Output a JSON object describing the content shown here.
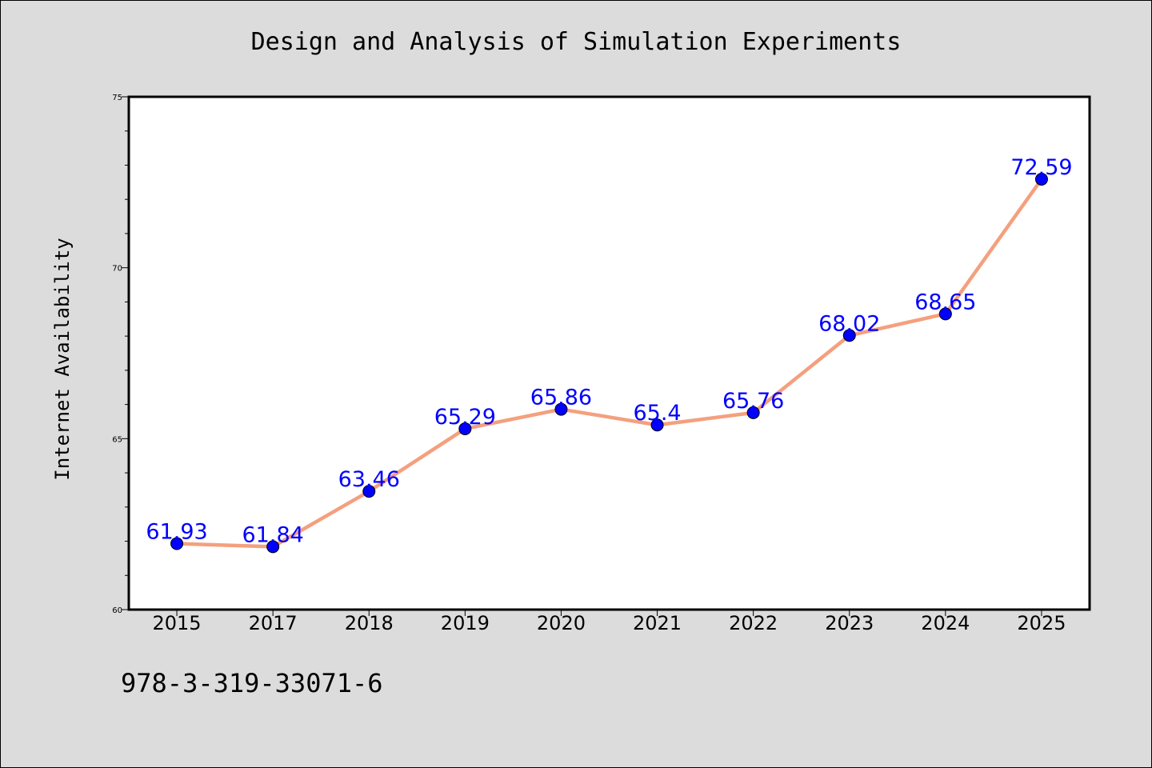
{
  "chart_data": {
    "type": "line",
    "title": "Design and Analysis of Simulation Experiments",
    "xlabel": "",
    "ylabel": "Internet Availability",
    "categories": [
      "2015",
      "2017",
      "2018",
      "2019",
      "2020",
      "2021",
      "2022",
      "2023",
      "2024",
      "2025"
    ],
    "series": [
      {
        "values": [
          61.93,
          61.84,
          63.46,
          65.29,
          65.86,
          65.4,
          65.76,
          68.02,
          68.65,
          72.59
        ],
        "data_labels": [
          "61.93",
          "61.84",
          "63.46",
          "65.29",
          "65.86",
          "65.4",
          "65.76",
          "68.02",
          "68.65",
          "72.59"
        ]
      }
    ],
    "ylim": [
      60,
      75
    ],
    "yticks": [
      60,
      65,
      70,
      75
    ],
    "ytick_labels": [
      "60",
      "65",
      "70",
      "75"
    ],
    "grid": false,
    "colors": {
      "line": "#f4a07e",
      "marker": "#0000ff",
      "data_label": "#0000ff",
      "background": "#dcdcdc",
      "plot_area": "#ffffff"
    }
  },
  "footer": {
    "isbn": "978-3-319-33071-6"
  }
}
